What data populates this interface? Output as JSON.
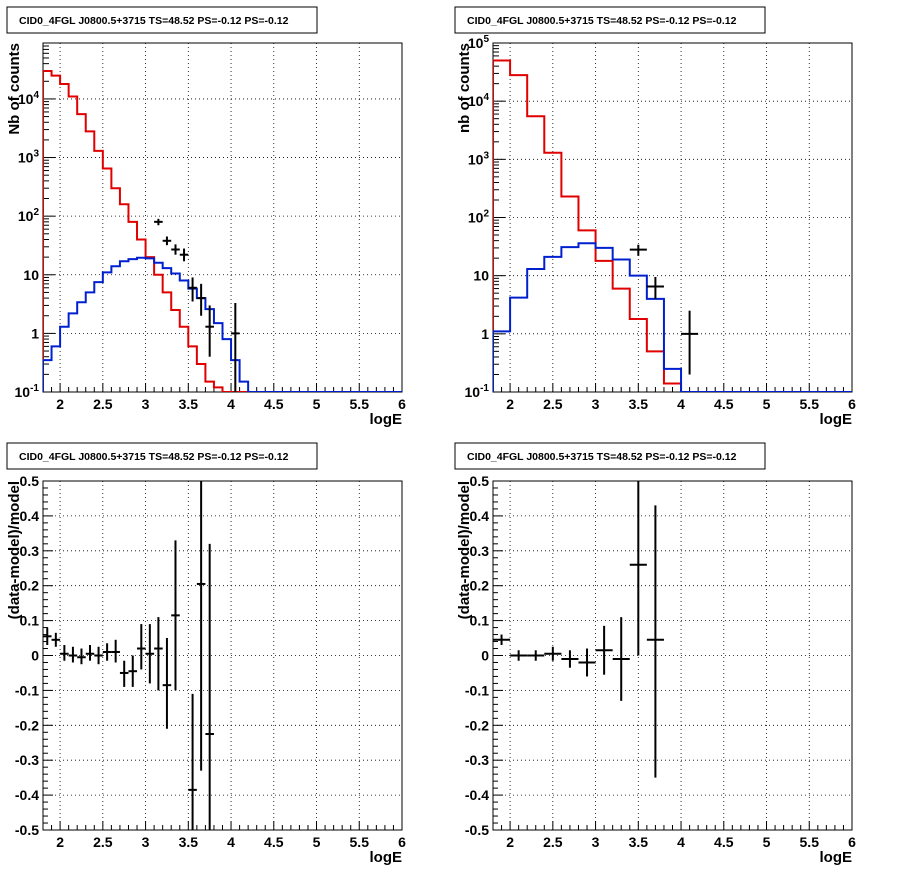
{
  "chart_data": [
    {
      "type": "histogram",
      "title": "CID0_4FGL J0800.5+3715 TS=48.52 PS=-0.12 PS=-0.12",
      "xlabel": "logE",
      "ylabel": "Nb of counts",
      "log_y": true,
      "xlim": [
        1.8,
        6.0
      ],
      "ylim": [
        0.1,
        90000
      ],
      "grid": true,
      "x_ticks": [
        "2",
        "2.5",
        "3",
        "3.5",
        "4",
        "4.5",
        "5",
        "5.5",
        "6"
      ],
      "y_ticks": [
        "10^-1",
        "1",
        "10",
        "10^2",
        "10^3",
        "10^4"
      ],
      "bin_edges": [
        1.8,
        1.9,
        2.0,
        2.1,
        2.2,
        2.3,
        2.4,
        2.5,
        2.6,
        2.7,
        2.8,
        2.9,
        3.0,
        3.1,
        3.2,
        3.3,
        3.4,
        3.5,
        3.6,
        3.7,
        3.8,
        3.9,
        4.0,
        4.1,
        4.2,
        4.3,
        4.4,
        4.5,
        4.6,
        4.7,
        4.8,
        4.9,
        5.0,
        5.1,
        5.2,
        5.3,
        5.4,
        5.5,
        5.6,
        5.7,
        5.8,
        5.9,
        6.0
      ],
      "series": [
        {
          "color": "#e00000",
          "style": "step",
          "values": [
            30000,
            25000,
            18000,
            11000,
            5500,
            2800,
            1300,
            650,
            300,
            160,
            80,
            40,
            20,
            10,
            5,
            2.5,
            1.3,
            0.6,
            0.3,
            0.15,
            0.12,
            0.1,
            0.1,
            0.1,
            0.1,
            0.1,
            0.1,
            0.1,
            0.1,
            0.1,
            0.1,
            0.1,
            0.1,
            0.1,
            0.1,
            0.1,
            0.1,
            0.1,
            0.1,
            0.1,
            0.1,
            0.1
          ]
        },
        {
          "color": "#0020d0",
          "style": "step",
          "values": [
            0.35,
            0.6,
            1.3,
            2.2,
            3.4,
            5,
            7.5,
            11,
            14,
            17,
            18.5,
            19.5,
            19,
            16,
            13,
            10.5,
            8,
            5.8,
            4,
            2.6,
            1.5,
            0.8,
            0.35,
            0.15,
            0.1,
            0.1,
            0.1,
            0.1,
            0.1,
            0.1,
            0.1,
            0.1,
            0.1,
            0.1,
            0.1,
            0.1,
            0.1,
            0.1,
            0.1,
            0.1,
            0.1,
            0.1
          ]
        }
      ],
      "data_points": [
        {
          "x": 3.15,
          "y": 80,
          "lo": 70,
          "hi": 90,
          "xw": 0.05
        },
        {
          "x": 3.25,
          "y": 38,
          "lo": 32,
          "hi": 45,
          "xw": 0.05
        },
        {
          "x": 3.35,
          "y": 27,
          "lo": 22,
          "hi": 33,
          "xw": 0.05
        },
        {
          "x": 3.45,
          "y": 22,
          "lo": 17,
          "hi": 28,
          "xw": 0.05
        },
        {
          "x": 3.55,
          "y": 6,
          "lo": 3.5,
          "hi": 9,
          "xw": 0.05
        },
        {
          "x": 3.65,
          "y": 4,
          "lo": 2,
          "hi": 7,
          "xw": 0.05
        },
        {
          "x": 3.75,
          "y": 1.3,
          "lo": 0.4,
          "hi": 3,
          "xw": 0.05
        },
        {
          "x": 4.05,
          "y": 1,
          "lo": 0.1,
          "hi": 3.3,
          "xw": 0.05
        }
      ]
    },
    {
      "type": "histogram",
      "title": "CID0_4FGL J0800.5+3715 TS=48.52 PS=-0.12 PS=-0.12",
      "xlabel": "logE",
      "ylabel": "nb of counts",
      "log_y": true,
      "xlim": [
        1.8,
        6.0
      ],
      "ylim": [
        0.1,
        100000
      ],
      "grid": true,
      "x_ticks": [
        "2",
        "2.5",
        "3",
        "3.5",
        "4",
        "4.5",
        "5",
        "5.5",
        "6"
      ],
      "y_ticks": [
        "10^-1",
        "1",
        "10",
        "10^2",
        "10^3",
        "10^4",
        "10^5"
      ],
      "bin_edges": [
        1.8,
        2.0,
        2.2,
        2.4,
        2.6,
        2.8,
        3.0,
        3.2,
        3.4,
        3.6,
        3.8,
        4.0,
        4.2,
        4.4,
        4.6,
        4.8,
        5.0,
        5.2,
        5.4,
        5.6,
        5.8,
        6.0
      ],
      "series": [
        {
          "color": "#e00000",
          "style": "step",
          "values": [
            50000,
            28000,
            5500,
            1300,
            230,
            60,
            18,
            6,
            1.8,
            0.5,
            0.14,
            0.1,
            0.1,
            0.1,
            0.1,
            0.1,
            0.1,
            0.1,
            0.1,
            0.1,
            0.1
          ]
        },
        {
          "color": "#0020d0",
          "style": "step",
          "values": [
            1.1,
            4.2,
            13,
            21,
            31,
            36,
            30,
            19,
            10,
            4,
            0.25,
            0.1,
            0.1,
            0.1,
            0.1,
            0.1,
            0.1,
            0.1,
            0.1,
            0.1,
            0.1
          ]
        }
      ],
      "data_points": [
        {
          "x": 3.5,
          "y": 28,
          "lo": 22,
          "hi": 34,
          "xw": 0.1
        },
        {
          "x": 3.7,
          "y": 6.5,
          "lo": 4,
          "hi": 9.5,
          "xw": 0.1
        },
        {
          "x": 4.1,
          "y": 1,
          "lo": 0.2,
          "hi": 2.5,
          "xw": 0.1
        }
      ]
    },
    {
      "type": "scatter",
      "title": "CID0_4FGL J0800.5+3715 TS=48.52 PS=-0.12 PS=-0.12",
      "xlabel": "logE",
      "ylabel": "(data-model)/model",
      "log_y": false,
      "xlim": [
        1.8,
        6.0
      ],
      "ylim": [
        -0.5,
        0.5
      ],
      "grid": true,
      "x_ticks": [
        "2",
        "2.5",
        "3",
        "3.5",
        "4",
        "4.5",
        "5",
        "5.5",
        "6"
      ],
      "y_ticks": [
        "-0.5",
        "-0.4",
        "-0.3",
        "-0.2",
        "-0.1",
        "0",
        "0.1",
        "0.2",
        "0.3",
        "0.4",
        "0.5"
      ],
      "data_points": [
        {
          "x": 1.85,
          "y": 0.055,
          "lo": 0.03,
          "hi": 0.08,
          "xw": 0.05
        },
        {
          "x": 1.95,
          "y": 0.045,
          "lo": 0.025,
          "hi": 0.065,
          "xw": 0.05
        },
        {
          "x": 2.05,
          "y": 0.005,
          "lo": -0.015,
          "hi": 0.03,
          "xw": 0.05
        },
        {
          "x": 2.15,
          "y": 0.0,
          "lo": -0.02,
          "hi": 0.025,
          "xw": 0.05
        },
        {
          "x": 2.25,
          "y": -0.005,
          "lo": -0.025,
          "hi": 0.02,
          "xw": 0.05
        },
        {
          "x": 2.35,
          "y": 0.005,
          "lo": -0.015,
          "hi": 0.03,
          "xw": 0.05
        },
        {
          "x": 2.45,
          "y": 0.0,
          "lo": -0.025,
          "hi": 0.025,
          "xw": 0.05
        },
        {
          "x": 2.55,
          "y": 0.01,
          "lo": -0.015,
          "hi": 0.035,
          "xw": 0.05
        },
        {
          "x": 2.65,
          "y": 0.01,
          "lo": -0.02,
          "hi": 0.045,
          "xw": 0.05
        },
        {
          "x": 2.75,
          "y": -0.05,
          "lo": -0.09,
          "hi": -0.015,
          "xw": 0.05
        },
        {
          "x": 2.85,
          "y": -0.045,
          "lo": -0.09,
          "hi": 0.0,
          "xw": 0.05
        },
        {
          "x": 2.95,
          "y": 0.02,
          "lo": -0.04,
          "hi": 0.09,
          "xw": 0.05
        },
        {
          "x": 3.05,
          "y": 0.005,
          "lo": -0.08,
          "hi": 0.09,
          "xw": 0.05
        },
        {
          "x": 3.15,
          "y": 0.02,
          "lo": -0.1,
          "hi": 0.11,
          "xw": 0.05
        },
        {
          "x": 3.25,
          "y": -0.085,
          "lo": -0.21,
          "hi": 0.05,
          "xw": 0.05
        },
        {
          "x": 3.35,
          "y": 0.115,
          "lo": -0.1,
          "hi": 0.33,
          "xw": 0.05
        },
        {
          "x": 3.55,
          "y": -0.385,
          "lo": -0.5,
          "hi": -0.11,
          "xw": 0.05
        },
        {
          "x": 3.65,
          "y": 0.205,
          "lo": -0.33,
          "hi": 0.5,
          "xw": 0.05
        },
        {
          "x": 3.75,
          "y": -0.225,
          "lo": -0.5,
          "hi": 0.32,
          "xw": 0.05
        }
      ]
    },
    {
      "type": "scatter",
      "title": "CID0_4FGL J0800.5+3715 TS=48.52 PS=-0.12 PS=-0.12",
      "xlabel": "logE",
      "ylabel": "(data-model)/model",
      "log_y": false,
      "xlim": [
        1.8,
        6.0
      ],
      "ylim": [
        -0.5,
        0.5
      ],
      "grid": true,
      "x_ticks": [
        "2",
        "2.5",
        "3",
        "3.5",
        "4",
        "4.5",
        "5",
        "5.5",
        "6"
      ],
      "y_ticks": [
        "-0.5",
        "-0.4",
        "-0.3",
        "-0.2",
        "-0.1",
        "0",
        "0.1",
        "0.2",
        "0.3",
        "0.4",
        "0.5"
      ],
      "data_points": [
        {
          "x": 1.9,
          "y": 0.045,
          "lo": 0.03,
          "hi": 0.06,
          "xw": 0.1
        },
        {
          "x": 2.1,
          "y": 0.0,
          "lo": -0.015,
          "hi": 0.015,
          "xw": 0.1
        },
        {
          "x": 2.3,
          "y": 0.0,
          "lo": -0.015,
          "hi": 0.015,
          "xw": 0.1
        },
        {
          "x": 2.5,
          "y": 0.005,
          "lo": -0.015,
          "hi": 0.025,
          "xw": 0.1
        },
        {
          "x": 2.7,
          "y": -0.01,
          "lo": -0.035,
          "hi": 0.015,
          "xw": 0.1
        },
        {
          "x": 2.9,
          "y": -0.02,
          "lo": -0.06,
          "hi": 0.02,
          "xw": 0.1
        },
        {
          "x": 3.1,
          "y": 0.015,
          "lo": -0.055,
          "hi": 0.085,
          "xw": 0.1
        },
        {
          "x": 3.3,
          "y": -0.01,
          "lo": -0.13,
          "hi": 0.11,
          "xw": 0.1
        },
        {
          "x": 3.5,
          "y": 0.26,
          "lo": 0.0,
          "hi": 0.5,
          "xw": 0.1
        },
        {
          "x": 3.7,
          "y": 0.045,
          "lo": -0.35,
          "hi": 0.43,
          "xw": 0.1
        }
      ]
    }
  ]
}
